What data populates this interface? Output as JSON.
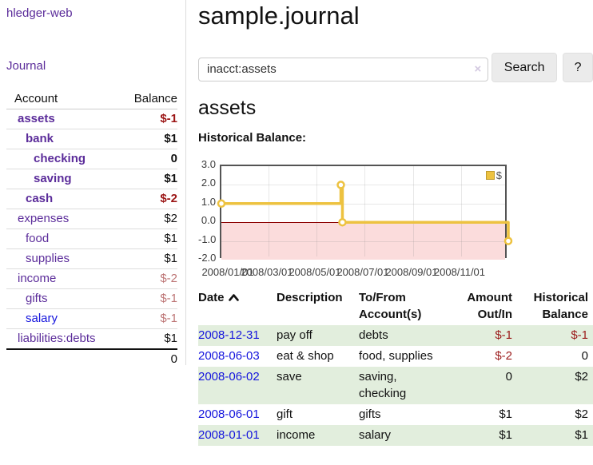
{
  "app": {
    "brand": "hledger-web",
    "nav_journal": "Journal"
  },
  "sidebar": {
    "headers": {
      "account": "Account",
      "balance": "Balance"
    },
    "accounts": [
      {
        "name": "assets",
        "balance": "$-1",
        "indent": 1,
        "bold": true,
        "balance_color": "negative"
      },
      {
        "name": "bank",
        "balance": "$1",
        "indent": 2,
        "bold": true,
        "balance_color": "normal"
      },
      {
        "name": "checking",
        "balance": "0",
        "indent": 3,
        "bold": true,
        "balance_color": "normal"
      },
      {
        "name": "saving",
        "balance": "$1",
        "indent": 3,
        "bold": true,
        "balance_color": "normal"
      },
      {
        "name": "cash",
        "balance": "$-2",
        "indent": 2,
        "bold": true,
        "balance_color": "negative"
      },
      {
        "name": "expenses",
        "balance": "$2",
        "indent": 1,
        "bold": false,
        "balance_color": "normal"
      },
      {
        "name": "food",
        "balance": "$1",
        "indent": 2,
        "bold": false,
        "balance_color": "normal"
      },
      {
        "name": "supplies",
        "balance": "$1",
        "indent": 2,
        "bold": false,
        "balance_color": "normal"
      },
      {
        "name": "income",
        "balance": "$-2",
        "indent": 1,
        "bold": false,
        "balance_color": "soft-negative"
      },
      {
        "name": "gifts",
        "balance": "$-1",
        "indent": 2,
        "bold": false,
        "balance_color": "soft-negative"
      },
      {
        "name": "salary",
        "balance": "$-1",
        "indent": 2,
        "bold": false,
        "balance_color": "soft-negative",
        "link_color": "blue"
      },
      {
        "name": "liabilities:debts",
        "balance": "$1",
        "indent": 1,
        "bold": false,
        "balance_color": "normal"
      }
    ],
    "total": "0"
  },
  "header": {
    "title": "sample.journal"
  },
  "search": {
    "value": "inacct:assets",
    "clear_icon": "×",
    "button": "Search",
    "help_button": "?"
  },
  "account_page": {
    "heading": "assets",
    "chart_label": "Historical Balance:"
  },
  "chart_data": {
    "type": "line",
    "mode": "steps",
    "title": "Historical Balance",
    "series": [
      {
        "name": "$",
        "color": "#edc240",
        "points": [
          [
            "2008-01-01",
            1
          ],
          [
            "2008-06-01",
            2
          ],
          [
            "2008-06-03",
            0
          ],
          [
            "2008-12-31",
            -1
          ]
        ]
      }
    ],
    "x_range": [
      "2008-01-01",
      "2008-12-31"
    ],
    "x_ticks": [
      "2008-01-01",
      "2008-03-01",
      "2008-05-01",
      "2008-07-01",
      "2008-09-01",
      "2008-11-01"
    ],
    "x_tick_labels": [
      "2008/01/01",
      "2008/03/01",
      "2008/05/01",
      "2008/07/01",
      "2008/09/01",
      "2008/11/01"
    ],
    "y_ticks": [
      3,
      2,
      1,
      0,
      -1,
      -2
    ],
    "y_tick_labels": [
      "3.0",
      "2.0",
      "1.0",
      "0.0",
      "-1.0",
      "-2.0"
    ],
    "y_gridlines": [
      2,
      1,
      -1
    ],
    "ylim": [
      -2,
      3
    ],
    "grid": true,
    "zero_line_color": "#8b0000",
    "negative_region_color": "#fbdcdc",
    "legend": {
      "label": "$",
      "position": "top-right"
    }
  },
  "register": {
    "headers": {
      "date": "Date",
      "description": "Description",
      "account": "To/From Account(s)",
      "amount": "Amount Out/In",
      "balance": "Historical Balance"
    },
    "sort_icon": "chevron-up",
    "rows": [
      {
        "date": "2008-12-31",
        "description": "pay off",
        "accounts": "debts",
        "amount": "$-1",
        "balance": "$-1",
        "amount_negative": true,
        "balance_negative": true,
        "shaded": true
      },
      {
        "date": "2008-06-03",
        "description": "eat & shop",
        "accounts": "food, supplies",
        "amount": "$-2",
        "balance": "0",
        "amount_negative": true,
        "balance_negative": false,
        "shaded": false
      },
      {
        "date": "2008-06-02",
        "description": "save",
        "accounts": "saving, checking",
        "amount": "0",
        "balance": "$2",
        "amount_negative": false,
        "balance_negative": false,
        "shaded": true
      },
      {
        "date": "2008-06-01",
        "description": "gift",
        "accounts": "gifts",
        "amount": "$1",
        "balance": "$2",
        "amount_negative": false,
        "balance_negative": false,
        "shaded": false
      },
      {
        "date": "2008-01-01",
        "description": "income",
        "accounts": "salary",
        "amount": "$1",
        "balance": "$1",
        "amount_negative": false,
        "balance_negative": false,
        "shaded": true
      }
    ]
  },
  "colors": {
    "link_purple": "#5b2c9a",
    "link_blue": "#1414dd",
    "negative_bold": "#9b1414",
    "negative": "#9b1b1b",
    "soft_negative": "#bd7575",
    "row_shade_green": "#e2eedd",
    "series_gold": "#edc240",
    "zero_line": "#8b0000",
    "negative_region": "#fbdcdc"
  }
}
